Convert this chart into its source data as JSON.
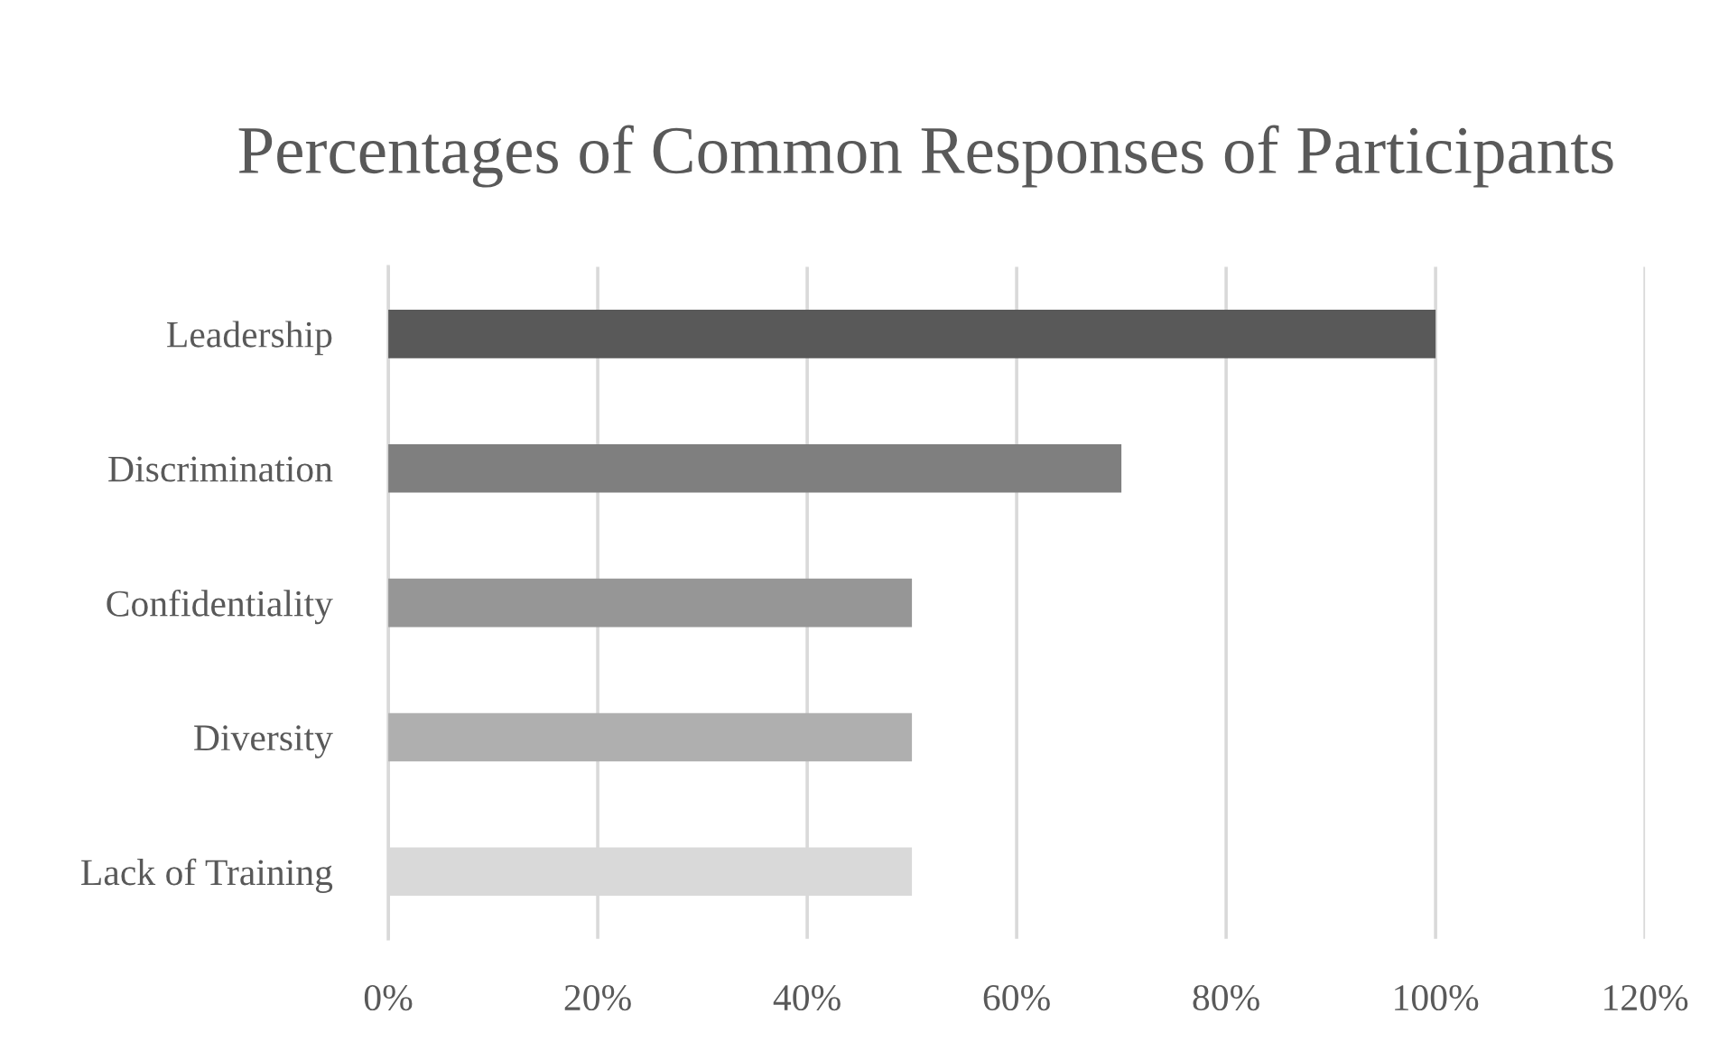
{
  "chart_data": {
    "type": "bar",
    "orientation": "horizontal",
    "title": "Percentages of Common Responses of Participants",
    "categories": [
      "Leadership",
      "Discrimination",
      "Confidentiality",
      "Diversity",
      "Lack of Training"
    ],
    "values": [
      100,
      70,
      50,
      50,
      50
    ],
    "colors": [
      "#595959",
      "#7f7f7f",
      "#969696",
      "#afafaf",
      "#d9d9d9"
    ],
    "xlim": [
      0,
      120
    ],
    "xticks": [
      {
        "value": 0,
        "label": "0%"
      },
      {
        "value": 20,
        "label": "20%"
      },
      {
        "value": 40,
        "label": "40%"
      },
      {
        "value": 60,
        "label": "60%"
      },
      {
        "value": 80,
        "label": "80%"
      },
      {
        "value": 100,
        "label": "100%"
      },
      {
        "value": 120,
        "label": "120%"
      }
    ],
    "grid": "x",
    "legend": false
  }
}
